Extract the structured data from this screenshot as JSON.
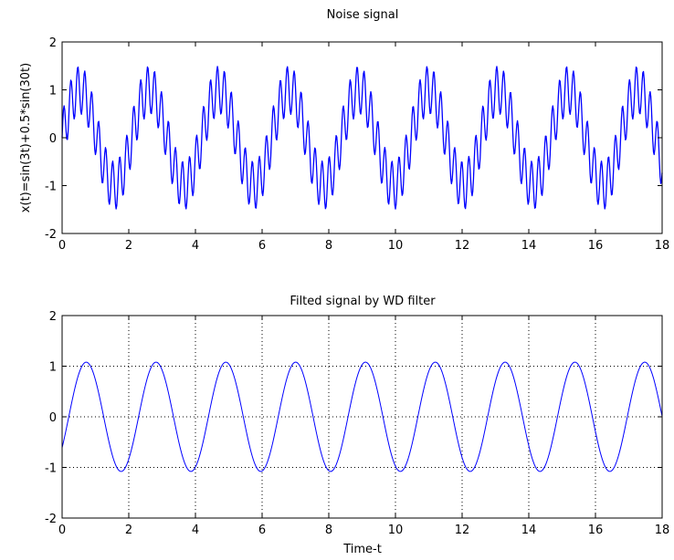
{
  "chart_data": [
    {
      "type": "line",
      "title": "Noise signal",
      "xlabel": "",
      "ylabel": "x(t)=sin(3t)+0.5*sin(30t)",
      "xlim": [
        0,
        18
      ],
      "ylim": [
        -2,
        2
      ],
      "xticks": [
        "0",
        "2",
        "4",
        "6",
        "8",
        "10",
        "12",
        "14",
        "16",
        "18"
      ],
      "yticks": [
        "-2",
        "-1",
        "0",
        "1",
        "2"
      ],
      "grid": false,
      "series": [
        {
          "color": "#0000ff",
          "function": "sin(3t)+0.5*sin(30t)",
          "t_range": [
            0,
            18
          ],
          "samples": 900
        }
      ]
    },
    {
      "type": "line",
      "title": "Filted signal by WD filter",
      "xlabel": "Time-t",
      "ylabel": "",
      "xlim": [
        0,
        18
      ],
      "ylim": [
        -2,
        2
      ],
      "xticks": [
        "0",
        "2",
        "4",
        "6",
        "8",
        "10",
        "12",
        "14",
        "16",
        "18"
      ],
      "yticks": [
        "-2",
        "-1",
        "0",
        "1",
        "2"
      ],
      "grid": true,
      "grid_style": "dotted",
      "series": [
        {
          "color": "#0000ff",
          "function": "1.08*sin(3t-0.6)",
          "t_range": [
            0,
            18
          ],
          "samples": 600
        }
      ]
    }
  ]
}
